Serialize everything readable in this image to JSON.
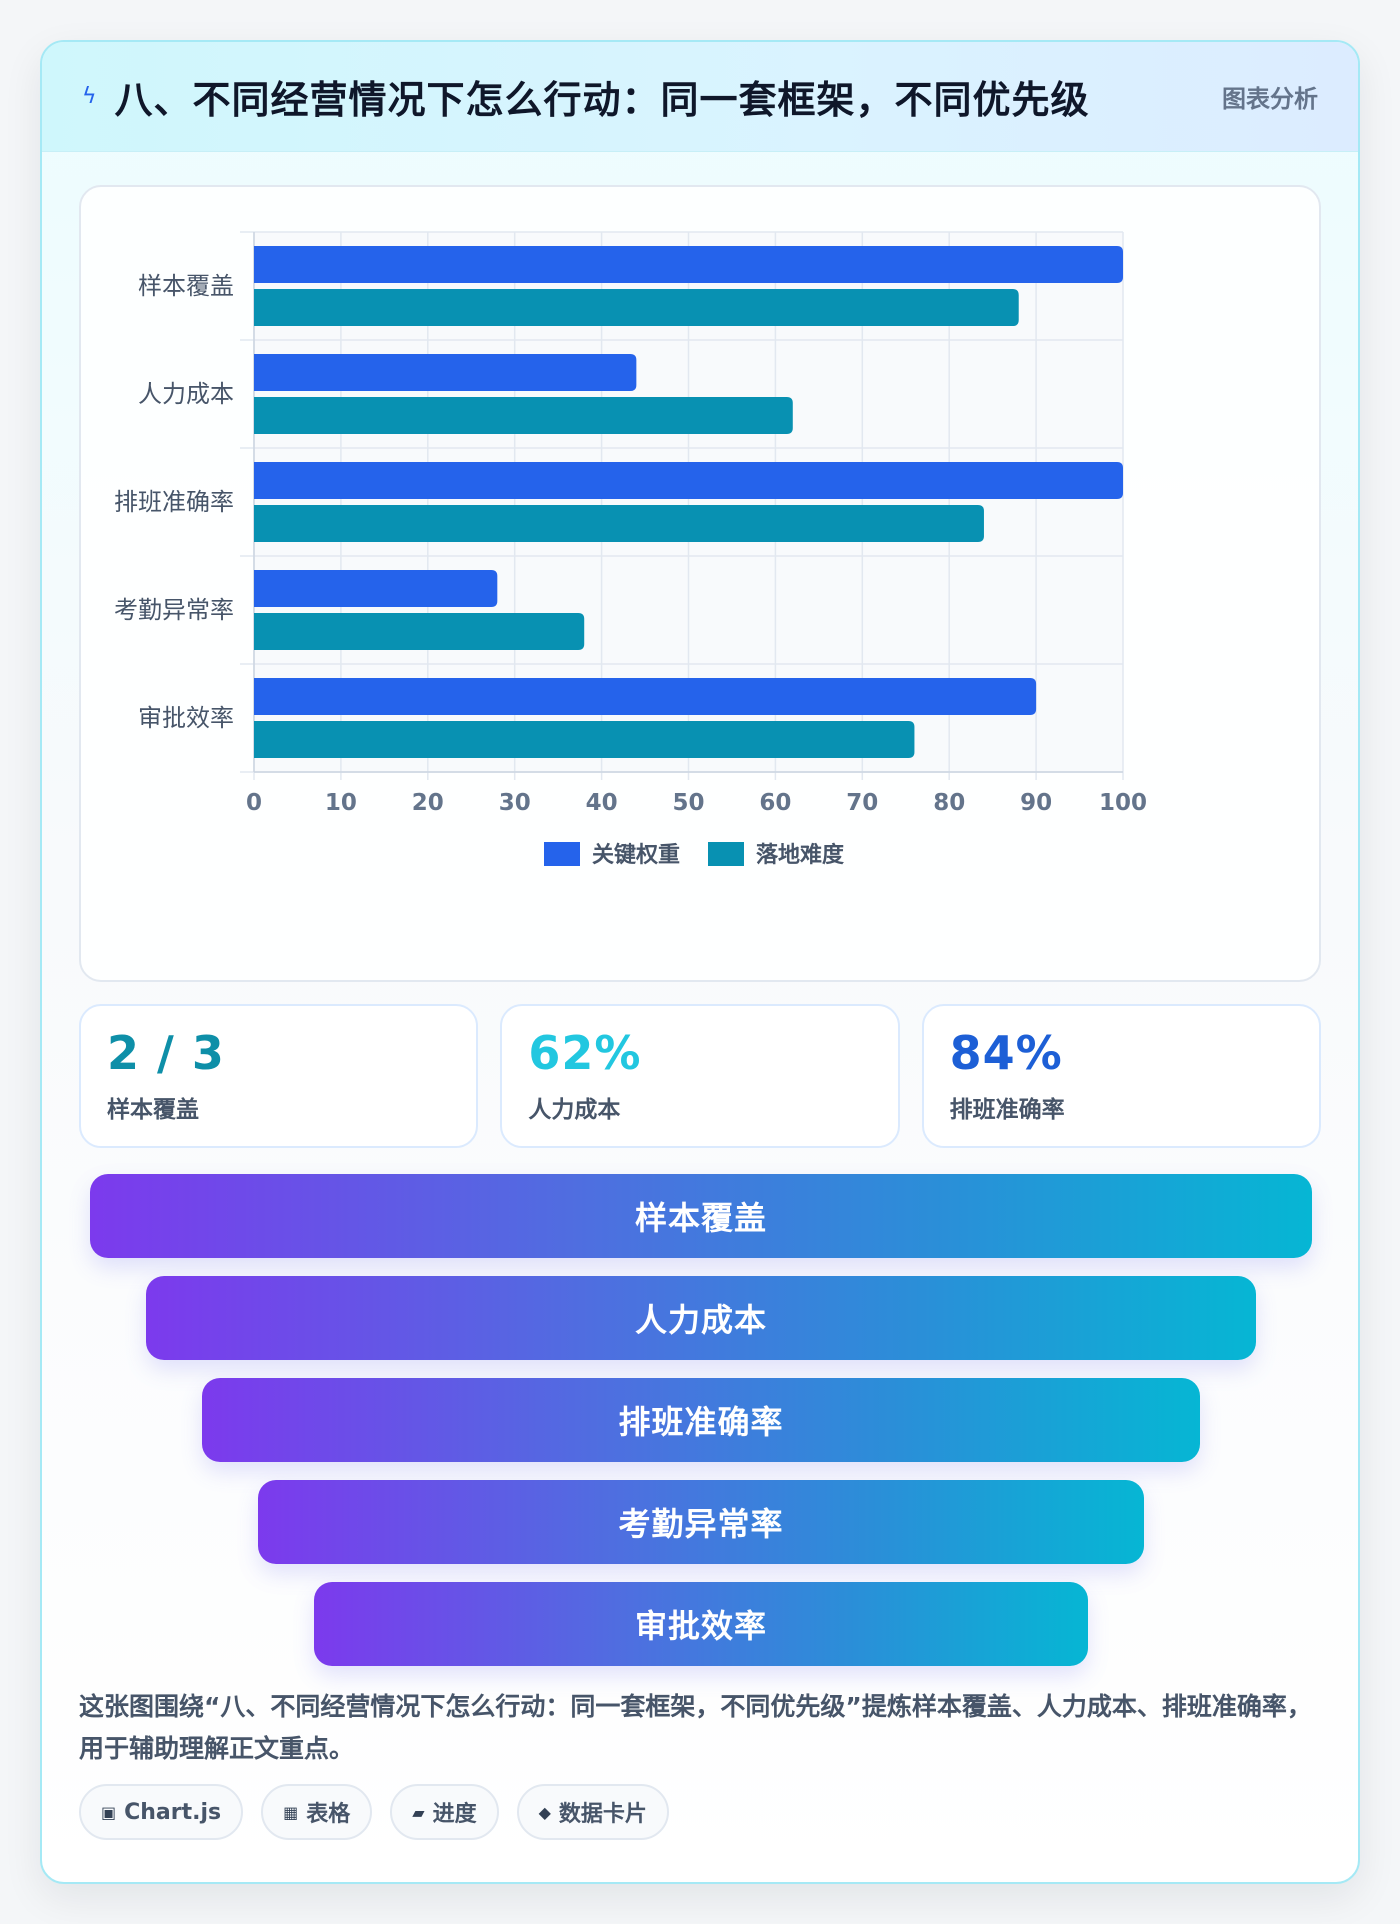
{
  "header": {
    "icon": "lightning-icon",
    "title": "八、不同经营情况下怎么行动：同一套框架，不同优先级",
    "tag": "图表分析"
  },
  "chart_data": {
    "type": "bar",
    "orientation": "horizontal",
    "categories": [
      "样本覆盖",
      "人力成本",
      "排班准确率",
      "考勤异常率",
      "审批效率"
    ],
    "series": [
      {
        "name": "关键权重",
        "color": "#2563eb",
        "values": [
          100,
          44,
          100,
          28,
          90
        ]
      },
      {
        "name": "落地难度",
        "color": "#0891b2",
        "values": [
          88,
          62,
          84,
          38,
          76
        ]
      }
    ],
    "xlim": [
      0,
      100
    ],
    "xticks": [
      0,
      10,
      20,
      30,
      40,
      50,
      60,
      70,
      80,
      90,
      100
    ],
    "grid": true,
    "legend_position": "bottom"
  },
  "stats": [
    {
      "value": "2 / 3",
      "label": "样本覆盖",
      "color": "#0e8fa8"
    },
    {
      "value": "62%",
      "label": "人力成本",
      "color": "#22c7e0"
    },
    {
      "value": "84%",
      "label": "排班准确率",
      "color": "#1d5fd6"
    }
  ],
  "funnel": [
    "样本覆盖",
    "人力成本",
    "排班准确率",
    "考勤异常率",
    "审批效率"
  ],
  "description": "这张图围绕“八、不同经营情况下怎么行动：同一套框架，不同优先级”提炼样本覆盖、人力成本、排班准确率，用于辅助理解正文重点。",
  "chips": [
    {
      "icon": "▣",
      "label": "Chart.js"
    },
    {
      "icon": "▦",
      "label": "表格"
    },
    {
      "icon": "▰",
      "label": "进度"
    },
    {
      "icon": "◆",
      "label": "数据卡片"
    }
  ]
}
